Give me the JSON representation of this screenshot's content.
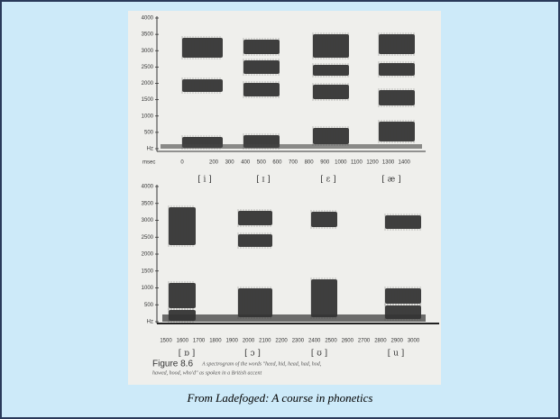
{
  "figure": {
    "top": {
      "y_labels": [
        "4000",
        "3500",
        "3000",
        "2500",
        "2000",
        "1500",
        "1000",
        "500",
        "Hz"
      ],
      "x_unit": "msec",
      "x_labels": [
        "0",
        "200",
        "300",
        "400",
        "500",
        "600",
        "700",
        "800",
        "900",
        "1000",
        "1100",
        "1200",
        "1300",
        "1400"
      ],
      "vowels": [
        "[ i ]",
        "[ ɪ ]",
        "[ ɛ ]",
        "[ æ ]"
      ]
    },
    "bottom": {
      "y_labels": [
        "4000",
        "3500",
        "3000",
        "2500",
        "2000",
        "1500",
        "1000",
        "500",
        "Hz"
      ],
      "x_labels": [
        "1500",
        "1600",
        "1700",
        "1800",
        "1900",
        "2000",
        "2100",
        "2200",
        "2300",
        "2400",
        "2500",
        "2600",
        "2700",
        "2800",
        "2900",
        "3000"
      ],
      "vowels": [
        "[ ɒ ]",
        "[ ɔ ]",
        "[ ʊ ]",
        "[ u ]"
      ]
    },
    "figure_number": "Figure 8.6",
    "figure_caption_1": "A spectrogram of the words \"heed, hid, head, had, hod,",
    "figure_caption_2": "hawed, hood, who'd\" as spoken in a British accent"
  },
  "caption": "From Ladefoged: A course in phonetics"
}
